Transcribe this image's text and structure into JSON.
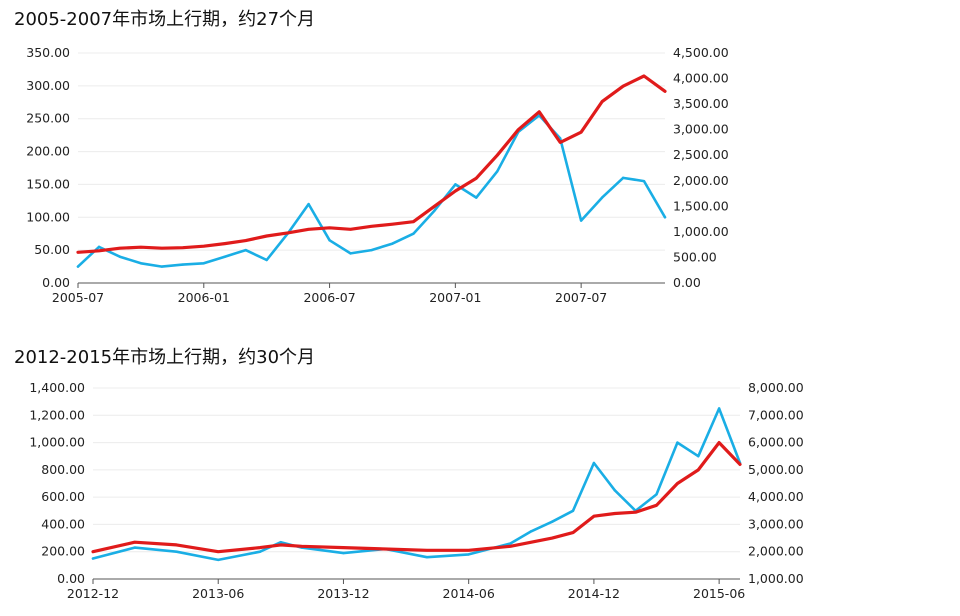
{
  "charts": [
    {
      "title": "2005-2007年市场上行期，约27个月"
    },
    {
      "title": "2012-2015年市场上行期，约30个月"
    }
  ],
  "colors": {
    "left_series": "#1aaee5",
    "right_series": "#e01b1b",
    "grid": "#ececec",
    "axis": "#555555"
  },
  "chart_data": [
    {
      "type": "line",
      "title": "2005-2007年市场上行期，约27个月",
      "x_ticks": [
        "2005-07",
        "2006-01",
        "2006-07",
        "2007-01",
        "2007-07"
      ],
      "y_left_ticks": [
        "0.00",
        "50.00",
        "100.00",
        "150.00",
        "200.00",
        "250.00",
        "300.00",
        "350.00"
      ],
      "y_right_ticks": [
        "0.00",
        "500.00",
        "1,000.00",
        "1,500.00",
        "2,000.00",
        "2,500.00",
        "3,000.00",
        "3,500.00",
        "4,000.00",
        "4,500.00"
      ],
      "ylim_left": [
        0,
        350
      ],
      "ylim_right": [
        0,
        4500
      ],
      "xlim": [
        "2005-07",
        "2007-11"
      ],
      "grid": true,
      "legend": "none",
      "series": [
        {
          "axis": "left",
          "color": "#1aaee5",
          "x": [
            "2005-07",
            "2005-08",
            "2005-09",
            "2005-10",
            "2005-11",
            "2005-12",
            "2006-01",
            "2006-02",
            "2006-03",
            "2006-04",
            "2006-05",
            "2006-06",
            "2006-07",
            "2006-08",
            "2006-09",
            "2006-10",
            "2006-11",
            "2006-12",
            "2007-01",
            "2007-02",
            "2007-03",
            "2007-04",
            "2007-05",
            "2007-06",
            "2007-07",
            "2007-08",
            "2007-09",
            "2007-10",
            "2007-11"
          ],
          "values": [
            25,
            55,
            40,
            30,
            25,
            28,
            30,
            40,
            50,
            35,
            75,
            120,
            65,
            45,
            50,
            60,
            75,
            110,
            150,
            130,
            170,
            230,
            255,
            220,
            95,
            130,
            160,
            155,
            100
          ]
        },
        {
          "axis": "right",
          "color": "#e01b1b",
          "x": [
            "2005-07",
            "2005-08",
            "2005-09",
            "2005-10",
            "2005-11",
            "2005-12",
            "2006-01",
            "2006-02",
            "2006-03",
            "2006-04",
            "2006-05",
            "2006-06",
            "2006-07",
            "2006-08",
            "2006-09",
            "2006-10",
            "2006-11",
            "2006-12",
            "2007-01",
            "2007-02",
            "2007-03",
            "2007-04",
            "2007-05",
            "2007-06",
            "2007-07",
            "2007-08",
            "2007-09",
            "2007-10",
            "2007-11"
          ],
          "values": [
            600,
            630,
            680,
            700,
            680,
            690,
            720,
            770,
            830,
            920,
            980,
            1050,
            1080,
            1050,
            1110,
            1150,
            1200,
            1500,
            1800,
            2050,
            2500,
            3000,
            3350,
            2750,
            2950,
            3550,
            3850,
            4050,
            3750
          ]
        }
      ]
    },
    {
      "type": "line",
      "title": "2012-2015年市场上行期，约30个月",
      "x_ticks": [
        "2012-12",
        "2013-06",
        "2013-12",
        "2014-06",
        "2014-12",
        "2015-06"
      ],
      "y_left_ticks": [
        "0.00",
        "200.00",
        "400.00",
        "600.00",
        "800.00",
        "1,000.00",
        "1,200.00",
        "1,400.00"
      ],
      "y_right_ticks": [
        "1,000.00",
        "2,000.00",
        "3,000.00",
        "4,000.00",
        "5,000.00",
        "6,000.00",
        "7,000.00",
        "8,000.00"
      ],
      "ylim_left": [
        0,
        1400
      ],
      "ylim_right": [
        1000,
        8000
      ],
      "xlim": [
        "2012-12",
        "2015-07"
      ],
      "grid": true,
      "legend": "none",
      "series": [
        {
          "axis": "left",
          "color": "#1aaee5",
          "x": [
            "2012-12",
            "2013-02",
            "2013-04",
            "2013-06",
            "2013-08",
            "2013-09",
            "2013-10",
            "2013-12",
            "2014-02",
            "2014-04",
            "2014-06",
            "2014-08",
            "2014-09",
            "2014-10",
            "2014-11",
            "2014-12",
            "2015-01",
            "2015-02",
            "2015-03",
            "2015-04",
            "2015-05",
            "2015-06",
            "2015-07"
          ],
          "values": [
            150,
            230,
            200,
            140,
            200,
            270,
            230,
            190,
            220,
            160,
            180,
            260,
            350,
            420,
            500,
            850,
            650,
            500,
            620,
            1000,
            900,
            1250,
            850
          ]
        },
        {
          "axis": "right",
          "color": "#e01b1b",
          "x": [
            "2012-12",
            "2013-02",
            "2013-04",
            "2013-06",
            "2013-08",
            "2013-09",
            "2013-10",
            "2013-12",
            "2014-02",
            "2014-04",
            "2014-06",
            "2014-08",
            "2014-09",
            "2014-10",
            "2014-11",
            "2014-12",
            "2015-01",
            "2015-02",
            "2015-03",
            "2015-04",
            "2015-05",
            "2015-06",
            "2015-07"
          ],
          "values": [
            2000,
            2350,
            2250,
            2000,
            2150,
            2250,
            2200,
            2150,
            2100,
            2050,
            2050,
            2200,
            2350,
            2500,
            2700,
            3300,
            3400,
            3450,
            3700,
            4500,
            5000,
            6000,
            5200
          ]
        }
      ]
    }
  ]
}
